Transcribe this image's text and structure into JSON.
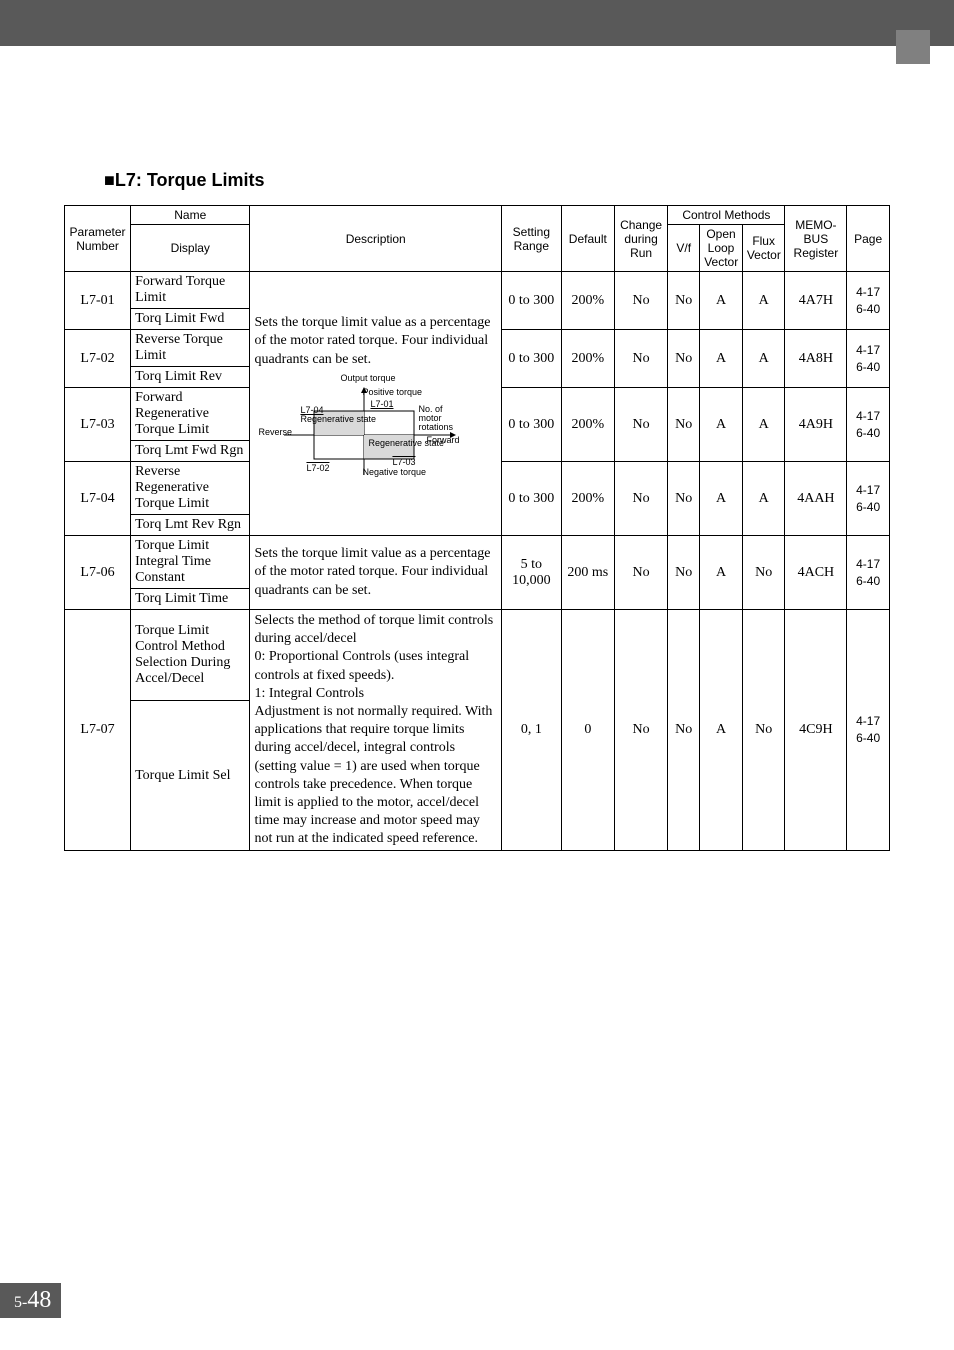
{
  "section_title": "L7: Torque Limits",
  "footer": {
    "prefix": "5",
    "sep": "-",
    "num": "48"
  },
  "headers": {
    "parameter_number": "Parameter Number",
    "name": "Name",
    "display": "Display",
    "description": "Description",
    "setting_range": "Setting Range",
    "default": "Default",
    "change_during_run": "Change during Run",
    "control_methods": "Control Methods",
    "vf": "V/f",
    "olv": "Open Loop Vector",
    "flux": "Flux Vector",
    "memo": "MEMO-BUS Register",
    "page": "Page"
  },
  "desc_common": "Sets the torque limit value as a percentage of the motor rated torque. Four individual quadrants can be set.",
  "diagram": {
    "output_torque": "Output torque",
    "positive_torque": "Positive torque",
    "l701": "L7-01",
    "l702": "L7-02",
    "l703": "L7-03",
    "l704": "L7-04",
    "regen_state": "Regenerative state",
    "reverse": "Reverse",
    "forward": "Forward",
    "no_motor_rot": "No. of motor rotations",
    "negative_torque": "Negative torque"
  },
  "rows": [
    {
      "param": "L7-01",
      "name": "Forward Torque Limit",
      "display": "Torq Limit Fwd",
      "range": "0 to 300",
      "default": "200%",
      "change": "No",
      "vf": "No",
      "olv": "A",
      "flux": "A",
      "memo": "4A7H",
      "page": "4-17\n6-40"
    },
    {
      "param": "L7-02",
      "name": "Reverse Torque Limit",
      "display": "Torq Limit Rev",
      "range": "0 to 300",
      "default": "200%",
      "change": "No",
      "vf": "No",
      "olv": "A",
      "flux": "A",
      "memo": "4A8H",
      "page": "4-17\n6-40"
    },
    {
      "param": "L7-03",
      "name": "Forward Regenerative Torque Limit",
      "display": "Torq Lmt Fwd Rgn",
      "range": "0 to 300",
      "default": "200%",
      "change": "No",
      "vf": "No",
      "olv": "A",
      "flux": "A",
      "memo": "4A9H",
      "page": "4-17\n6-40"
    },
    {
      "param": "L7-04",
      "name": "Reverse Regenerative Torque Limit",
      "display": "Torq Lmt Rev Rgn",
      "range": "0 to 300",
      "default": "200%",
      "change": "No",
      "vf": "No",
      "olv": "A",
      "flux": "A",
      "memo": "4AAH",
      "page": "4-17\n6-40"
    },
    {
      "param": "L7-06",
      "name": "Torque Limit Integral Time Constant",
      "display": "Torq Limit Time",
      "desc": "Sets the torque limit value as a percentage of the motor rated torque. Four individual quadrants can be set.",
      "range": "5 to 10,000",
      "default": "200 ms",
      "change": "No",
      "vf": "No",
      "olv": "A",
      "flux": "No",
      "memo": "4ACH",
      "page": "4-17\n6-40"
    },
    {
      "param": "L7-07",
      "name": "Torque Limit Control Method Selection During Accel/Decel",
      "display": "Torque Limit Sel",
      "desc": "Selects the method of torque limit controls during accel/decel\n0:  Proportional Controls (uses integral controls at fixed speeds).\n1:  Integral Controls\nAdjustment is not normally required. With applications that require torque limits during accel/decel, integral controls (setting value = 1) are used when torque controls take precedence. When torque limit is applied to the motor, accel/decel time may increase and motor speed may not run at the indicated speed reference.",
      "range": "0, 1",
      "default": "0",
      "change": "No",
      "vf": "No",
      "olv": "A",
      "flux": "No",
      "memo": "4C9H",
      "page": "4-17\n6-40"
    }
  ]
}
